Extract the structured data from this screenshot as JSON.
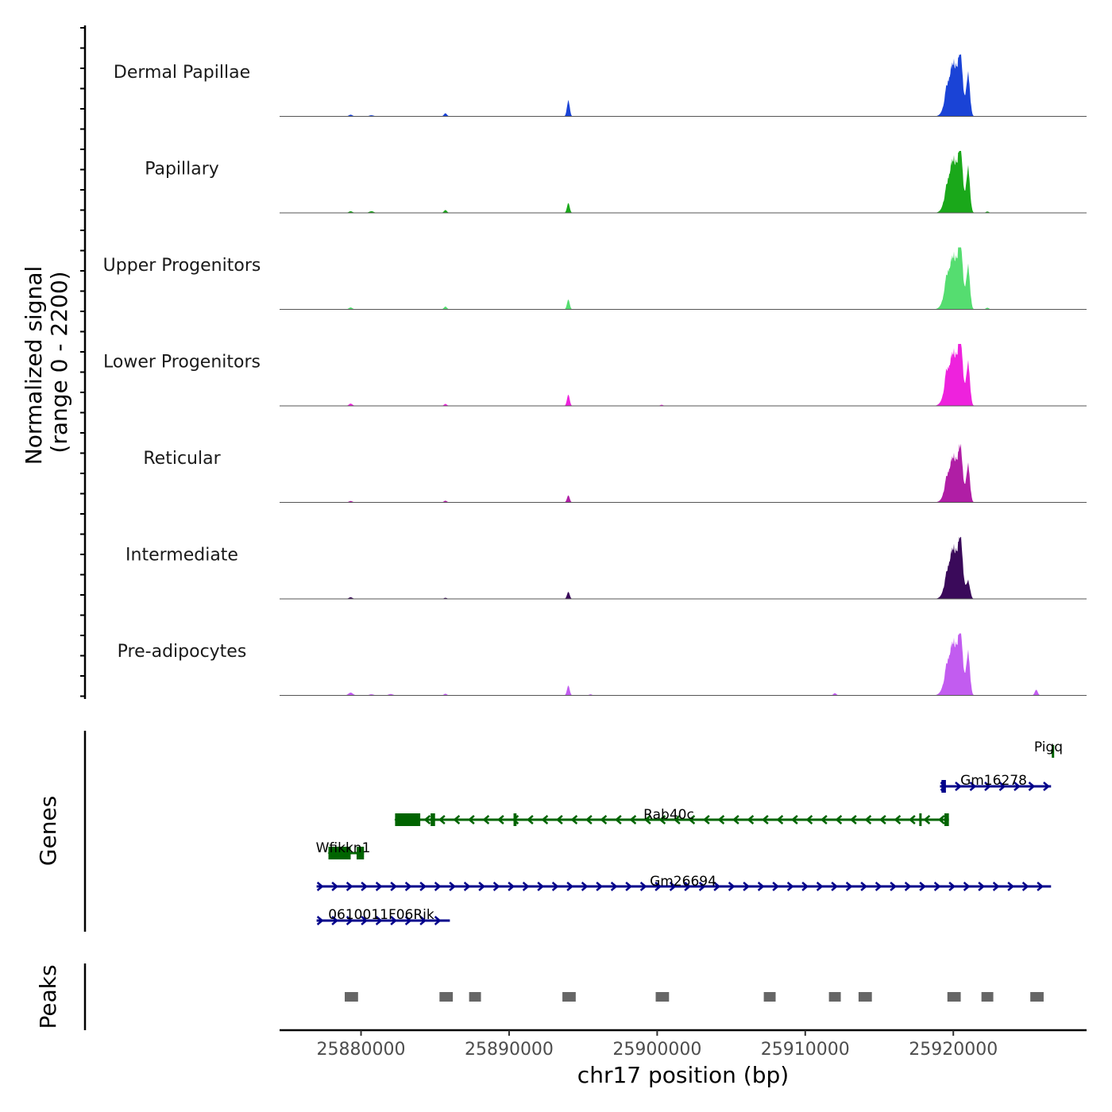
{
  "chart_data": {
    "type": "area",
    "title": "",
    "xlabel": "chr17 position (bp)",
    "ylabel_line1": "Normalized signal",
    "ylabel_line2": "(range 0 - 2200)",
    "xlim": [
      25874500,
      25929000
    ],
    "ylim": [
      0,
      2200
    ],
    "x_ticks": [
      {
        "value": 25880000,
        "label": "25880000"
      },
      {
        "value": 25890000,
        "label": "25890000"
      },
      {
        "value": 25900000,
        "label": "25900000"
      },
      {
        "value": 25910000,
        "label": "25910000"
      },
      {
        "value": 25920000,
        "label": "25920000"
      }
    ],
    "series": [
      {
        "name": "Dermal Papillae",
        "color": "#1a43d6",
        "peaks": [
          [
            25879300,
            60,
            120
          ],
          [
            25880700,
            40,
            150
          ],
          [
            25885700,
            110,
            100
          ],
          [
            25894000,
            600,
            90
          ],
          [
            25919500,
            300,
            100
          ],
          [
            25920000,
            2100,
            360
          ],
          [
            25920500,
            1600,
            150
          ],
          [
            25921000,
            1700,
            120
          ]
        ]
      },
      {
        "name": "Papillary",
        "color": "#1aa81a",
        "peaks": [
          [
            25879300,
            60,
            120
          ],
          [
            25880700,
            60,
            150
          ],
          [
            25885700,
            100,
            100
          ],
          [
            25894000,
            350,
            90
          ],
          [
            25919500,
            200,
            100
          ],
          [
            25920000,
            2100,
            360
          ],
          [
            25920500,
            1700,
            150
          ],
          [
            25921000,
            1800,
            120
          ],
          [
            25922300,
            50,
            100
          ]
        ]
      },
      {
        "name": "Upper Progenitors",
        "color": "#55dd70",
        "peaks": [
          [
            25879300,
            70,
            120
          ],
          [
            25885700,
            100,
            100
          ],
          [
            25894000,
            350,
            90
          ],
          [
            25919500,
            350,
            120
          ],
          [
            25920000,
            2100,
            380
          ],
          [
            25920500,
            1700,
            150
          ],
          [
            25921000,
            1700,
            120
          ],
          [
            25922300,
            60,
            100
          ]
        ]
      },
      {
        "name": "Lower Progenitors",
        "color": "#ee22dd",
        "peaks": [
          [
            25879300,
            80,
            120
          ],
          [
            25885700,
            70,
            100
          ],
          [
            25894000,
            400,
            90
          ],
          [
            25900300,
            40,
            100
          ],
          [
            25919500,
            450,
            100
          ],
          [
            25920000,
            2100,
            380
          ],
          [
            25920500,
            1700,
            150
          ],
          [
            25921000,
            1700,
            120
          ]
        ]
      },
      {
        "name": "Reticular",
        "color": "#b01ea5",
        "peaks": [
          [
            25879300,
            50,
            120
          ],
          [
            25885700,
            60,
            100
          ],
          [
            25894000,
            250,
            90
          ],
          [
            25919500,
            250,
            100
          ],
          [
            25920000,
            1800,
            360
          ],
          [
            25920500,
            1400,
            150
          ],
          [
            25921000,
            1500,
            120
          ]
        ]
      },
      {
        "name": "Intermediate",
        "color": "#3a0a5a",
        "peaks": [
          [
            25879300,
            60,
            120
          ],
          [
            25885700,
            40,
            100
          ],
          [
            25894000,
            250,
            90
          ],
          [
            25919500,
            200,
            100
          ],
          [
            25920000,
            2000,
            360
          ],
          [
            25920500,
            1600,
            150
          ],
          [
            25921000,
            700,
            120
          ]
        ]
      },
      {
        "name": "Pre-adipocytes",
        "color": "#c25cf0",
        "peaks": [
          [
            25879300,
            100,
            150
          ],
          [
            25880700,
            40,
            150
          ],
          [
            25882000,
            50,
            150
          ],
          [
            25885700,
            60,
            100
          ],
          [
            25894000,
            350,
            90
          ],
          [
            25895500,
            40,
            100
          ],
          [
            25912000,
            80,
            100
          ],
          [
            25919500,
            250,
            100
          ],
          [
            25920000,
            2100,
            380
          ],
          [
            25920500,
            1600,
            150
          ],
          [
            25921000,
            1700,
            120
          ],
          [
            25925600,
            200,
            100
          ]
        ]
      }
    ],
    "genes_title": "Genes",
    "genes": [
      {
        "name": "Pigq",
        "strand": "-",
        "color": "#006400",
        "start": 25926600,
        "end": 25926800,
        "row": 0,
        "exons": [
          [
            25926650,
            25926750
          ]
        ]
      },
      {
        "name": "Gm16278",
        "strand": "+",
        "color": "#00008b",
        "start": 25919100,
        "end": 25926600,
        "row": 1,
        "exons": [
          [
            25919200,
            25919500
          ]
        ]
      },
      {
        "name": "Rab40c",
        "strand": "-",
        "color": "#006400",
        "start": 25882300,
        "end": 25919700,
        "row": 2,
        "exons": [
          [
            25882300,
            25884000
          ],
          [
            25884700,
            25885000
          ],
          [
            25890300,
            25890500
          ],
          [
            25917700,
            25917800
          ],
          [
            25919400,
            25919700
          ]
        ]
      },
      {
        "name": "Wfikkn1",
        "strand": "-",
        "color": "#006400",
        "start": 25877800,
        "end": 25880200,
        "row": 3,
        "exons": [
          [
            25877800,
            25879300
          ],
          [
            25879700,
            25880200
          ]
        ]
      },
      {
        "name": "Gm26694",
        "strand": "+",
        "color": "#00008b",
        "start": 25877000,
        "end": 25926600,
        "row": 4,
        "exons": []
      },
      {
        "name": "0610011F06Rik",
        "strand": "+",
        "color": "#00008b",
        "start": 25877000,
        "end": 25886000,
        "row": 5,
        "exons": []
      }
    ],
    "peaks_title": "Peaks",
    "peak_regions": [
      [
        25878900,
        25879800
      ],
      [
        25885300,
        25886200
      ],
      [
        25887300,
        25888100
      ],
      [
        25893600,
        25894500
      ],
      [
        25899900,
        25900800
      ],
      [
        25907200,
        25908000
      ],
      [
        25911600,
        25912400
      ],
      [
        25913600,
        25914500
      ],
      [
        25919600,
        25920500
      ],
      [
        25921900,
        25922700
      ],
      [
        25925200,
        25926100
      ]
    ]
  }
}
